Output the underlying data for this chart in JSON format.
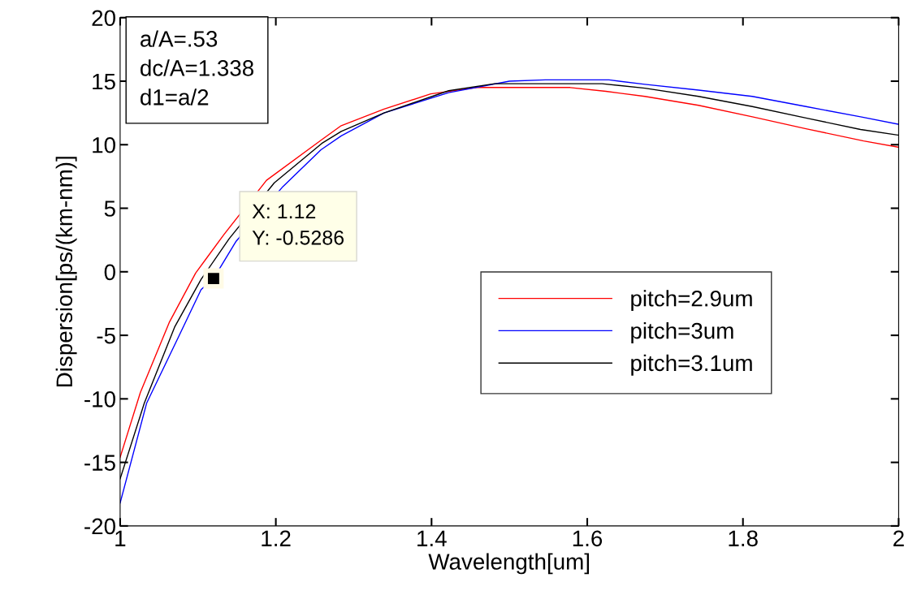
{
  "chart_data": {
    "type": "line",
    "xlabel": "Wavelength[um]",
    "ylabel": "Dispersion[ps/(km-nm)]",
    "xlim": [
      1,
      2
    ],
    "ylim": [
      -20,
      20
    ],
    "xticks": [
      1,
      1.2,
      1.4,
      1.6,
      1.8,
      2
    ],
    "yticks": [
      -20,
      -15,
      -10,
      -5,
      0,
      5,
      10,
      15,
      20
    ],
    "grid": false,
    "legend": "center",
    "marker": "none",
    "line_style": "solid",
    "series": [
      {
        "name": "pitch=2.9um",
        "color": "#ff0000",
        "x": [
          1.0,
          1.026,
          1.063,
          1.097,
          1.133,
          1.188,
          1.258,
          1.284,
          1.339,
          1.399,
          1.458,
          1.578,
          1.624,
          1.674,
          1.743,
          1.812,
          1.881,
          1.955,
          2.0
        ],
        "values": [
          -14.6,
          -9.5,
          -4.0,
          -0.1,
          2.9,
          7.2,
          10.35,
          11.5,
          12.8,
          14.0,
          14.5,
          14.5,
          14.2,
          13.8,
          13.1,
          12.2,
          11.25,
          10.3,
          9.8
        ]
      },
      {
        "name": "pitch=3um",
        "color": "#0000ff",
        "x": [
          1.0,
          1.034,
          1.076,
          1.104,
          1.12,
          1.149,
          1.209,
          1.258,
          1.284,
          1.339,
          1.422,
          1.5,
          1.546,
          1.628,
          1.674,
          1.743,
          1.812,
          1.881,
          1.951,
          2.0
        ],
        "values": [
          -18.2,
          -10.35,
          -5.0,
          -1.4,
          -0.5286,
          2.4,
          6.7,
          9.6,
          10.7,
          12.5,
          14.1,
          15.0,
          15.1,
          15.1,
          14.75,
          14.3,
          13.8,
          13.0,
          12.2,
          11.6
        ]
      },
      {
        "name": "pitch=3.1um",
        "color": "#000000",
        "x": [
          1.0,
          1.031,
          1.07,
          1.104,
          1.14,
          1.198,
          1.259,
          1.284,
          1.339,
          1.422,
          1.481,
          1.619,
          1.674,
          1.743,
          1.812,
          1.881,
          1.951,
          2.0
        ],
        "values": [
          -16.3,
          -10.35,
          -4.35,
          -0.6,
          2.6,
          7.0,
          10.1,
          11.05,
          12.5,
          14.25,
          14.8,
          14.8,
          14.45,
          13.8,
          13.0,
          12.1,
          11.2,
          10.75
        ]
      }
    ],
    "annotations": [
      "a/A=.53\ndc/A=1.338\nd1=a/2",
      {
        "text": "X: 1.12\nY: -0.5286",
        "x": 1.12,
        "y": -0.5286
      }
    ]
  }
}
